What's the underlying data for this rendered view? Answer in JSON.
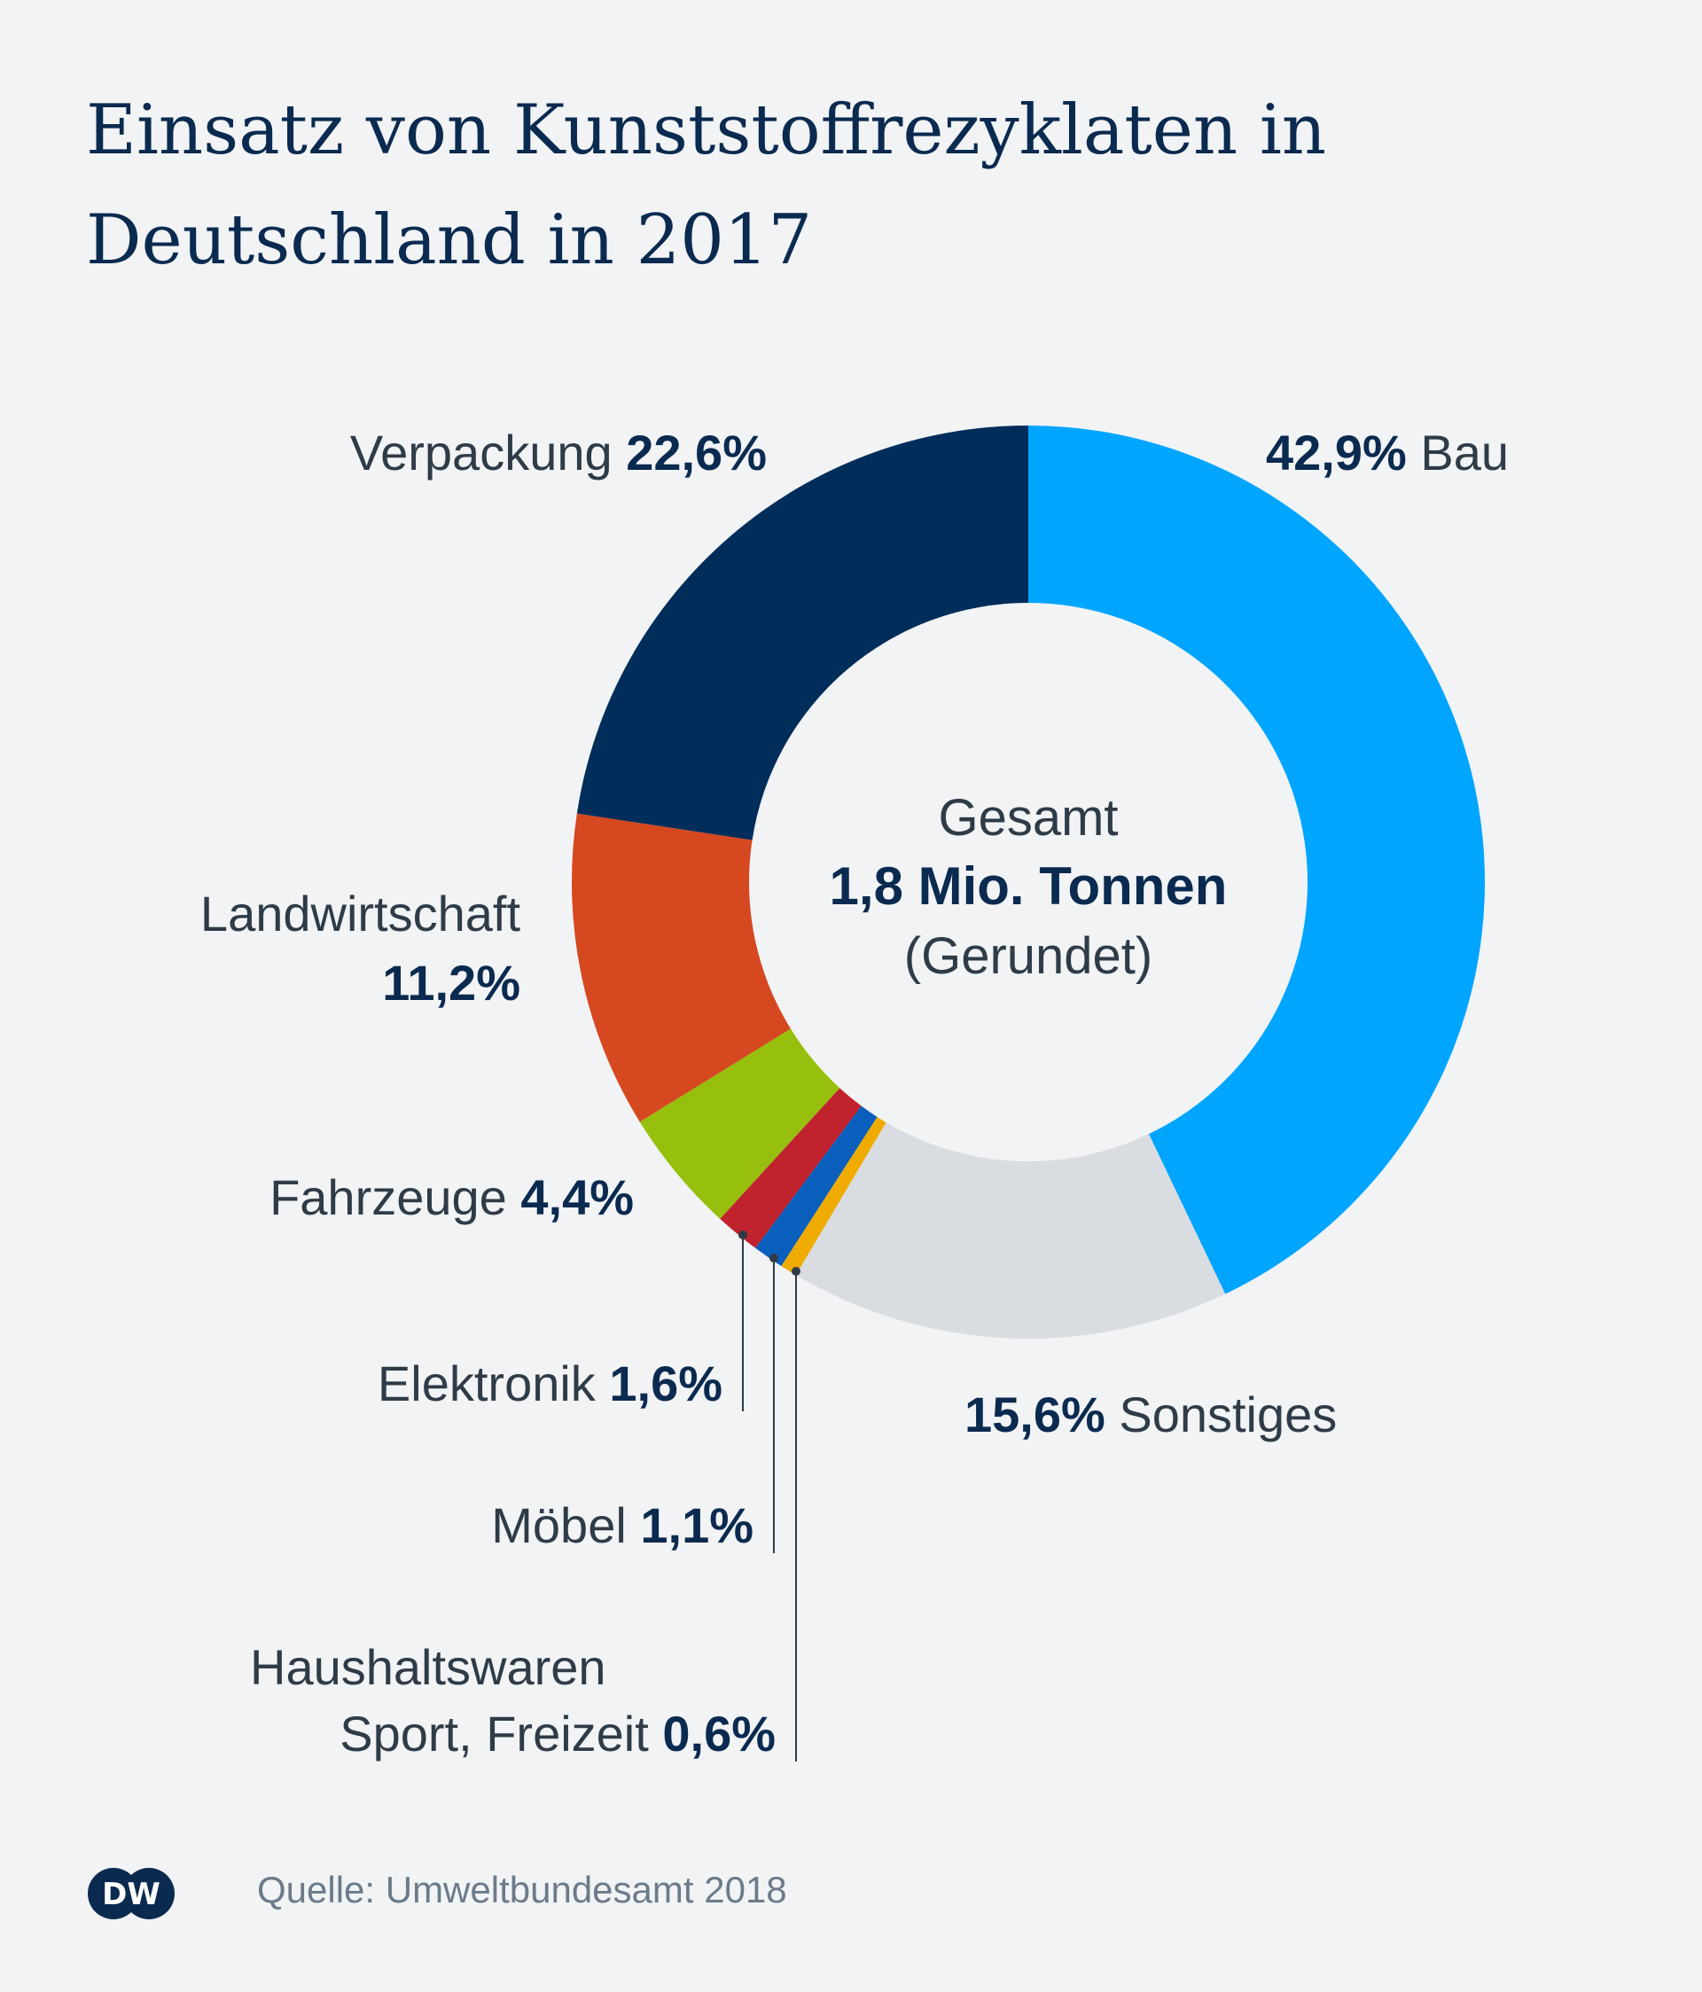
{
  "chart_data": {
    "type": "pie",
    "title": "Einsatz von Kunststoffrezyklaten in Deutschland in 2017",
    "donut": true,
    "center": {
      "line1": "Gesamt",
      "line2": "1,8 Mio. Tonnen",
      "line3": "(Gerundet)"
    },
    "slices": [
      {
        "label": "Bau",
        "value": 42.9,
        "value_label": "42,9%",
        "color": "#00a5ff"
      },
      {
        "label": "Sonstiges",
        "value": 15.6,
        "value_label": "15,6%",
        "color": "#d9dde1"
      },
      {
        "label": "Haushaltswaren Sport, Freizeit",
        "value": 0.6,
        "value_label": "0,6%",
        "color": "#f0ab00"
      },
      {
        "label": "Möbel",
        "value": 1.1,
        "value_label": "1,1%",
        "color": "#0a5fbd"
      },
      {
        "label": "Elektronik",
        "value": 1.6,
        "value_label": "1,6%",
        "color": "#c0222e"
      },
      {
        "label": "Fahrzeuge",
        "value": 4.4,
        "value_label": "4,4%",
        "color": "#97bf0d"
      },
      {
        "label": "Landwirtschaft",
        "value": 11.2,
        "value_label": "11,2%",
        "color": "#d64820"
      },
      {
        "label": "Verpackung",
        "value": 22.6,
        "value_label": "22,6%",
        "color": "#002d5a"
      }
    ]
  },
  "source": "Quelle: Umweltbundesamt 2018",
  "logo_text": "DW"
}
